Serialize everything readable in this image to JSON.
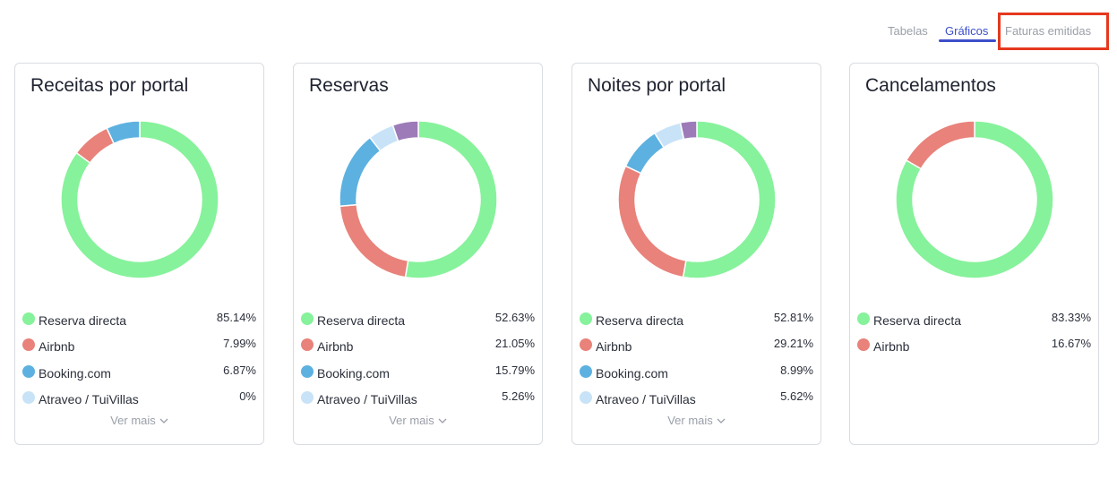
{
  "tabs": [
    {
      "label": "Tabelas"
    },
    {
      "label": "Gráficos"
    },
    {
      "label": "Faturas emitidas"
    }
  ],
  "see_more_label": "Ver mais",
  "colors": {
    "Reserva directa": "#86f29b",
    "Airbnb": "#e8827a",
    "Booking.com": "#5db1e0",
    "Atraveo / TuiVillas": "#c8e3f7",
    "purple": "#9c7bb8",
    "accent": "#3d4fc9",
    "highlight": "#e5381f"
  },
  "cards": [
    {
      "title": "Receitas por portal",
      "legend": [
        {
          "label": "Reserva directa",
          "value": "85.14%"
        },
        {
          "label": "Airbnb",
          "value": "7.99%"
        },
        {
          "label": "Booking.com",
          "value": "6.87%"
        },
        {
          "label": "Atraveo / TuiVillas",
          "value": "0%"
        }
      ],
      "has_more": true
    },
    {
      "title": "Reservas",
      "legend": [
        {
          "label": "Reserva directa",
          "value": "52.63%"
        },
        {
          "label": "Airbnb",
          "value": "21.05%"
        },
        {
          "label": "Booking.com",
          "value": "15.79%"
        },
        {
          "label": "Atraveo / TuiVillas",
          "value": "5.26%"
        }
      ],
      "has_more": true
    },
    {
      "title": "Noites por portal",
      "legend": [
        {
          "label": "Reserva directa",
          "value": "52.81%"
        },
        {
          "label": "Airbnb",
          "value": "29.21%"
        },
        {
          "label": "Booking.com",
          "value": "8.99%"
        },
        {
          "label": "Atraveo / TuiVillas",
          "value": "5.62%"
        }
      ],
      "has_more": true
    },
    {
      "title": "Cancelamentos",
      "legend": [
        {
          "label": "Reserva directa",
          "value": "83.33%"
        },
        {
          "label": "Airbnb",
          "value": "16.67%"
        }
      ],
      "has_more": false
    }
  ],
  "chart_data": [
    {
      "type": "pie",
      "donut": true,
      "title": "Receitas por portal",
      "series": [
        {
          "name": "Reserva directa",
          "value": 85.14,
          "color": "#86f29b"
        },
        {
          "name": "Airbnb",
          "value": 7.99,
          "color": "#e8827a"
        },
        {
          "name": "Booking.com",
          "value": 6.87,
          "color": "#5db1e0"
        },
        {
          "name": "Atraveo / TuiVillas",
          "value": 0,
          "color": "#c8e3f7"
        }
      ]
    },
    {
      "type": "pie",
      "donut": true,
      "title": "Reservas",
      "series": [
        {
          "name": "Reserva directa",
          "value": 52.63,
          "color": "#86f29b"
        },
        {
          "name": "Airbnb",
          "value": 21.05,
          "color": "#e8827a"
        },
        {
          "name": "Booking.com",
          "value": 15.79,
          "color": "#5db1e0"
        },
        {
          "name": "Atraveo / TuiVillas",
          "value": 5.26,
          "color": "#c8e3f7"
        },
        {
          "value": 5.26,
          "color": "#9c7bb8"
        }
      ]
    },
    {
      "type": "pie",
      "donut": true,
      "title": "Noites por portal",
      "series": [
        {
          "name": "Reserva directa",
          "value": 52.81,
          "color": "#86f29b"
        },
        {
          "name": "Airbnb",
          "value": 29.21,
          "color": "#e8827a"
        },
        {
          "name": "Booking.com",
          "value": 8.99,
          "color": "#5db1e0"
        },
        {
          "name": "Atraveo / TuiVillas",
          "value": 5.62,
          "color": "#c8e3f7"
        },
        {
          "value": 3.37,
          "color": "#9c7bb8"
        }
      ]
    },
    {
      "type": "pie",
      "donut": true,
      "title": "Cancelamentos",
      "series": [
        {
          "name": "Reserva directa",
          "value": 83.33,
          "color": "#86f29b"
        },
        {
          "name": "Airbnb",
          "value": 16.67,
          "color": "#e8827a"
        }
      ]
    }
  ]
}
